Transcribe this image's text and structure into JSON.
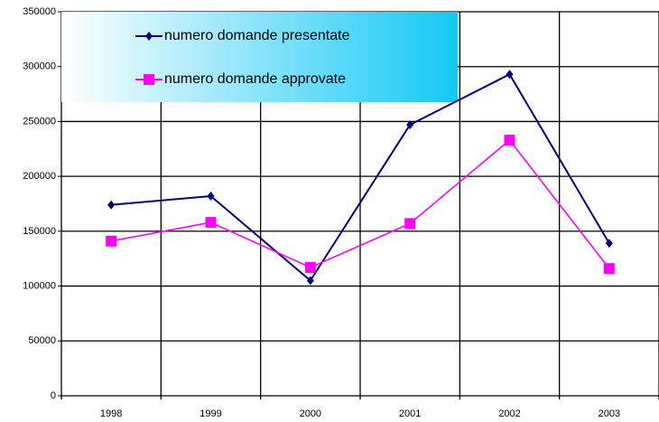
{
  "chart_data": {
    "type": "line",
    "categories": [
      "1998",
      "1999",
      "2000",
      "2001",
      "2002",
      "2003"
    ],
    "series": [
      {
        "name": "numero domande presentate",
        "color": "#000080",
        "marker": "diamond",
        "values": [
          174000,
          182000,
          105000,
          247000,
          293000,
          139000
        ]
      },
      {
        "name": "numero domande approvate",
        "color": "#ff00ff",
        "marker": "square",
        "values": [
          141000,
          158000,
          117000,
          157000,
          233000,
          116000
        ]
      }
    ],
    "ylim": [
      0,
      350000
    ],
    "yticks": [
      0,
      50000,
      100000,
      150000,
      200000,
      250000,
      300000,
      350000
    ],
    "grid": true,
    "legend": "top-left"
  }
}
